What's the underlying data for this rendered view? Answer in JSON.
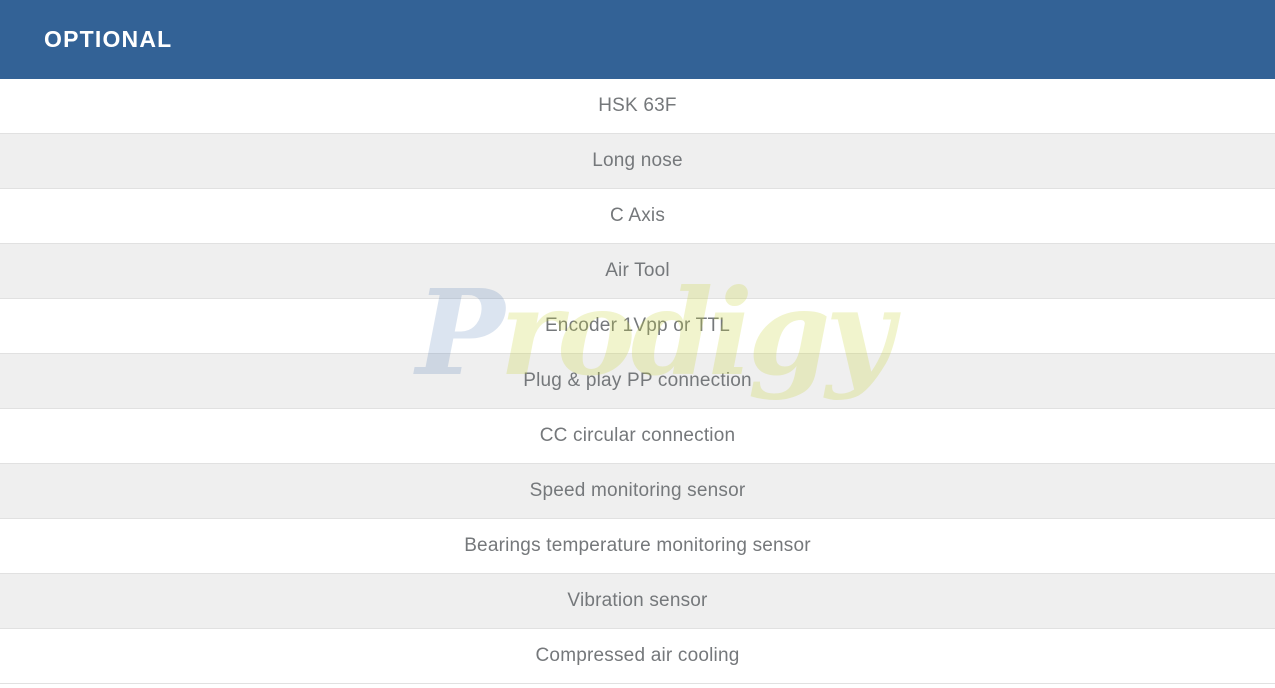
{
  "header": {
    "title": "OPTIONAL",
    "bg_color": "#336296",
    "text_color": "#ffffff"
  },
  "table": {
    "row_alt_bg_color": "#efefef",
    "row_border_color": "#e1e1e1",
    "row_text_color": "#75787b",
    "rows": [
      {
        "label": "HSK 63F"
      },
      {
        "label": "Long nose"
      },
      {
        "label": "C Axis"
      },
      {
        "label": "Air Tool"
      },
      {
        "label": "Encoder 1Vpp or TTL"
      },
      {
        "label": "Plug & play PP connection"
      },
      {
        "label": "CC circular connection"
      },
      {
        "label": "Speed monitoring sensor"
      },
      {
        "label": "Bearings temperature monitoring sensor"
      },
      {
        "label": "Vibration sensor"
      },
      {
        "label": "Compressed air cooling"
      }
    ]
  },
  "watermark": {
    "text": "Prodigy",
    "part1": "P",
    "part2": "rodigy",
    "color1": "#2c5ca8",
    "color2": "#c8d43c"
  }
}
